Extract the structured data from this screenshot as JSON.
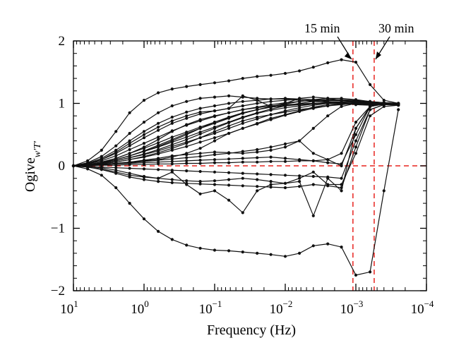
{
  "chart_data": {
    "type": "line",
    "xlabel": "Frequency (Hz)",
    "ylabel_main": "Ogive",
    "ylabel_sub": "w′T′",
    "xscale": "log-reversed",
    "xlim": [
      10,
      0.0001
    ],
    "ylim": [
      -2,
      2
    ],
    "x_ticks": [
      {
        "value": 10,
        "base": "10",
        "exp": "1"
      },
      {
        "value": 1,
        "base": "10",
        "exp": "0"
      },
      {
        "value": 0.1,
        "base": "10",
        "exp": "−1"
      },
      {
        "value": 0.01,
        "base": "10",
        "exp": "−2"
      },
      {
        "value": 0.001,
        "base": "10",
        "exp": "−3"
      },
      {
        "value": 0.0001,
        "base": "10",
        "exp": "−4"
      }
    ],
    "y_ticks": [
      {
        "value": 2,
        "label": "2"
      },
      {
        "value": 1,
        "label": "1"
      },
      {
        "value": 0,
        "label": "0"
      },
      {
        "value": -1,
        "label": "−1"
      },
      {
        "value": -2,
        "label": "−2"
      }
    ],
    "reference_lines": {
      "horizontal_y": 0,
      "vertical_x": [
        0.0011,
        0.00055
      ],
      "color": "#e8231f"
    },
    "annotations": [
      {
        "text": "15 min",
        "x": 0.0011
      },
      {
        "text": "30 min",
        "x": 0.00055
      }
    ],
    "x": [
      10,
      6.3,
      4.0,
      2.5,
      1.6,
      1.0,
      0.63,
      0.4,
      0.25,
      0.16,
      0.1,
      0.063,
      0.04,
      0.025,
      0.016,
      0.01,
      0.0063,
      0.004,
      0.0025,
      0.0016,
      0.001,
      0.00063,
      0.0004,
      0.00025
    ],
    "series": [
      {
        "values": [
          0,
          0.08,
          0.25,
          0.55,
          0.85,
          1.05,
          1.17,
          1.23,
          1.27,
          1.3,
          1.33,
          1.36,
          1.4,
          1.43,
          1.45,
          1.48,
          1.52,
          1.58,
          1.65,
          1.7,
          1.66,
          1.3,
          1.05,
          1.0
        ]
      },
      {
        "values": [
          0,
          0.05,
          0.15,
          0.32,
          0.52,
          0.7,
          0.85,
          0.96,
          1.03,
          1.08,
          1.1,
          1.12,
          1.1,
          1.08,
          1.07,
          1.07,
          1.05,
          1.03,
          1.02,
          1.0,
          0.98,
          0.97,
          0.98,
          0.99
        ]
      },
      {
        "values": [
          0,
          0.04,
          0.12,
          0.25,
          0.4,
          0.55,
          0.68,
          0.78,
          0.86,
          0.92,
          0.96,
          1.0,
          1.03,
          1.05,
          1.07,
          1.08,
          1.07,
          1.05,
          1.03,
          1.02,
          1.01,
          1.0,
          1.0,
          1.0
        ]
      },
      {
        "values": [
          0,
          0.03,
          0.1,
          0.2,
          0.32,
          0.45,
          0.57,
          0.68,
          0.76,
          0.83,
          0.88,
          0.92,
          0.96,
          1.0,
          1.03,
          1.05,
          1.07,
          1.06,
          1.05,
          1.04,
          1.03,
          1.02,
          1.01,
          1.0
        ]
      },
      {
        "values": [
          0,
          0.03,
          0.08,
          0.16,
          0.26,
          0.36,
          0.46,
          0.56,
          0.65,
          0.72,
          0.79,
          0.85,
          0.9,
          0.94,
          0.98,
          1.01,
          1.03,
          1.05,
          1.06,
          1.06,
          1.05,
          1.03,
          1.01,
          1.0
        ]
      },
      {
        "values": [
          0,
          0.02,
          0.06,
          0.12,
          0.2,
          0.28,
          0.37,
          0.46,
          0.54,
          0.62,
          0.7,
          0.77,
          0.84,
          0.9,
          0.95,
          0.99,
          1.03,
          1.06,
          1.08,
          1.08,
          1.06,
          1.03,
          1.01,
          1.0
        ]
      },
      {
        "values": [
          0,
          0.02,
          0.05,
          0.1,
          0.16,
          0.23,
          0.3,
          0.38,
          0.46,
          0.54,
          0.62,
          0.7,
          0.78,
          0.85,
          0.91,
          0.96,
          1.0,
          1.03,
          1.05,
          1.05,
          1.04,
          1.02,
          1.0,
          0.99
        ]
      },
      {
        "values": [
          0,
          0.02,
          0.04,
          0.08,
          0.13,
          0.18,
          0.24,
          0.31,
          0.38,
          0.45,
          0.52,
          0.6,
          0.68,
          0.75,
          0.82,
          0.88,
          0.93,
          0.97,
          1.0,
          1.02,
          1.02,
          1.01,
          1.0,
          0.99
        ]
      },
      {
        "values": [
          0,
          0.01,
          0.03,
          0.06,
          0.1,
          0.14,
          0.19,
          0.25,
          0.31,
          0.38,
          0.45,
          0.52,
          0.6,
          0.67,
          0.74,
          0.81,
          0.87,
          0.92,
          0.96,
          0.99,
          1.0,
          1.0,
          0.99,
          0.99
        ]
      },
      {
        "values": [
          0,
          0.03,
          0.1,
          0.22,
          0.36,
          0.5,
          0.62,
          0.72,
          0.8,
          0.86,
          0.88,
          0.92,
          1.12,
          1.05,
          0.95,
          1.0,
          1.08,
          1.1,
          1.08,
          1.05,
          1.02,
          1.0,
          0.99,
          0.98
        ]
      },
      {
        "values": [
          0,
          0.02,
          0.06,
          0.12,
          0.2,
          0.3,
          0.42,
          0.55,
          0.66,
          0.74,
          0.8,
          0.85,
          0.9,
          0.93,
          0.96,
          0.98,
          0.99,
          1.0,
          1.01,
          1.0,
          0.99,
          0.98,
          0.98,
          0.98
        ]
      },
      {
        "values": [
          0,
          0.02,
          0.05,
          0.1,
          0.16,
          0.24,
          0.33,
          0.42,
          0.52,
          0.6,
          0.68,
          0.76,
          0.84,
          0.9,
          0.94,
          0.96,
          0.98,
          0.99,
          1.0,
          1.01,
          1.02,
          1.01,
          1.0,
          0.99
        ]
      },
      {
        "values": [
          0,
          0.01,
          0.03,
          0.06,
          0.1,
          0.15,
          0.21,
          0.28,
          0.36,
          0.45,
          0.55,
          0.64,
          0.72,
          0.78,
          0.82,
          0.86,
          0.9,
          0.93,
          0.96,
          0.98,
          1.0,
          1.0,
          1.0,
          1.0
        ]
      },
      {
        "values": [
          0,
          0.01,
          0.02,
          0.04,
          0.06,
          0.08,
          0.1,
          0.14,
          0.2,
          0.28,
          0.4,
          0.52,
          0.6,
          0.68,
          0.76,
          0.82,
          0.88,
          0.94,
          0.98,
          1.0,
          1.0,
          0.99,
          0.98,
          0.98
        ]
      },
      {
        "values": [
          0,
          0.01,
          0.02,
          0.04,
          0.06,
          0.09,
          0.12,
          0.16,
          0.18,
          0.2,
          0.22,
          0.21,
          0.2,
          0.22,
          0.25,
          0.3,
          0.4,
          0.6,
          0.8,
          0.95,
          1.0,
          0.99,
          0.98,
          0.97
        ]
      },
      {
        "values": [
          0,
          0.01,
          0.02,
          0.03,
          0.05,
          0.07,
          0.09,
          0.11,
          0.13,
          0.15,
          0.18,
          0.2,
          0.23,
          0.26,
          0.3,
          0.35,
          0.4,
          0.2,
          0.1,
          0.0,
          0.6,
          0.95,
          0.99,
          0.98
        ]
      },
      {
        "values": [
          0,
          0.01,
          0.02,
          0.03,
          0.04,
          0.05,
          0.06,
          0.07,
          0.08,
          0.09,
          0.1,
          0.11,
          0.12,
          0.13,
          0.14,
          0.12,
          0.1,
          0.08,
          0.05,
          0.03,
          0.5,
          0.95,
          0.99,
          0.98
        ]
      },
      {
        "values": [
          0,
          0.0,
          0.01,
          0.01,
          0.02,
          0.02,
          0.03,
          0.03,
          0.04,
          0.04,
          0.05,
          0.05,
          0.06,
          0.06,
          0.07,
          0.07,
          0.08,
          0.08,
          0.1,
          0.2,
          0.7,
          0.95,
          0.99,
          0.98
        ]
      },
      {
        "values": [
          0,
          -0.01,
          -0.02,
          -0.03,
          -0.04,
          -0.05,
          -0.06,
          -0.07,
          -0.08,
          -0.09,
          -0.1,
          -0.11,
          -0.12,
          -0.13,
          -0.14,
          -0.15,
          -0.16,
          -0.17,
          -0.18,
          -0.2,
          0.4,
          0.9,
          0.98,
          0.98
        ]
      },
      {
        "values": [
          0,
          -0.02,
          -0.05,
          -0.1,
          -0.15,
          -0.18,
          -0.2,
          -0.22,
          -0.24,
          -0.25,
          -0.24,
          -0.22,
          -0.2,
          -0.22,
          -0.25,
          -0.28,
          -0.2,
          -0.1,
          -0.3,
          -0.3,
          0.2,
          0.8,
          0.95,
          0.97
        ]
      },
      {
        "values": [
          0,
          -0.02,
          -0.06,
          -0.12,
          -0.18,
          -0.22,
          -0.25,
          -0.27,
          -0.28,
          -0.29,
          -0.3,
          -0.31,
          -0.32,
          -0.33,
          -0.34,
          -0.35,
          -0.33,
          -0.3,
          -0.32,
          -0.35,
          0.3,
          0.9,
          0.98,
          0.98
        ]
      },
      {
        "values": [
          0,
          -0.01,
          -0.03,
          -0.07,
          -0.12,
          -0.17,
          -0.2,
          -0.1,
          -0.3,
          -0.45,
          -0.4,
          -0.55,
          -0.75,
          -0.4,
          -0.3,
          -0.28,
          -0.25,
          -0.8,
          -0.2,
          -0.4,
          0.6,
          0.95,
          0.99,
          0.98
        ]
      },
      {
        "values": [
          0,
          -0.05,
          -0.15,
          -0.35,
          -0.6,
          -0.85,
          -1.05,
          -1.18,
          -1.27,
          -1.32,
          -1.35,
          -1.36,
          -1.38,
          -1.4,
          -1.42,
          -1.45,
          -1.4,
          -1.28,
          -1.25,
          -1.3,
          -1.75,
          -1.7,
          -0.4,
          0.9
        ]
      },
      {
        "values": [
          0,
          0.02,
          0.05,
          0.1,
          0.16,
          0.23,
          0.31,
          0.4,
          0.5,
          0.6,
          0.7,
          0.78,
          0.85,
          0.9,
          0.94,
          0.97,
          0.99,
          1.0,
          1.01,
          1.02,
          1.03,
          1.02,
          1.01,
          1.0
        ]
      },
      {
        "values": [
          0,
          0.01,
          0.04,
          0.08,
          0.13,
          0.19,
          0.26,
          0.34,
          0.42,
          0.51,
          0.6,
          0.69,
          0.77,
          0.84,
          0.89,
          0.93,
          0.96,
          0.99,
          1.01,
          1.02,
          1.02,
          1.01,
          1.0,
          0.99
        ]
      }
    ]
  }
}
